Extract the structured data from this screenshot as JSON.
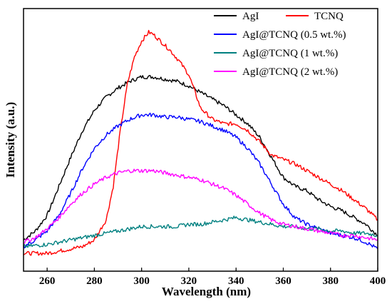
{
  "chart_data": {
    "type": "line",
    "title": "",
    "xlabel": "Wavelength (nm)",
    "ylabel": "Intensity (a.u.)",
    "xlim": [
      250,
      400
    ],
    "ylim": [
      0,
      1
    ],
    "y_ticks_shown": false,
    "grid": false,
    "legend_position": "top-right",
    "x_ticks": [
      "260",
      "280",
      "300",
      "320",
      "340",
      "360",
      "380",
      "400"
    ],
    "x_tick_values": [
      260,
      280,
      300,
      320,
      340,
      360,
      380,
      400
    ],
    "series": [
      {
        "name": "AgI",
        "color": "#000000",
        "x": [
          250,
          255,
          260,
          265,
          270,
          275,
          280,
          285,
          290,
          295,
          300,
          305,
          310,
          315,
          320,
          325,
          330,
          335,
          340,
          345,
          350,
          355,
          360,
          365,
          370,
          375,
          380,
          385,
          390,
          395,
          400
        ],
        "y": [
          0.06,
          0.1,
          0.17,
          0.3,
          0.43,
          0.55,
          0.64,
          0.7,
          0.74,
          0.77,
          0.79,
          0.79,
          0.78,
          0.77,
          0.75,
          0.72,
          0.69,
          0.66,
          0.62,
          0.58,
          0.52,
          0.43,
          0.34,
          0.3,
          0.28,
          0.24,
          0.21,
          0.19,
          0.16,
          0.13,
          0.08
        ]
      },
      {
        "name": "TCNQ",
        "color": "#ff0000",
        "x": [
          250,
          255,
          260,
          265,
          270,
          275,
          280,
          285,
          288,
          291,
          294,
          297,
          300,
          303,
          305,
          308,
          312,
          316,
          320,
          325,
          330,
          335,
          340,
          345,
          350,
          355,
          360,
          365,
          370,
          375,
          380,
          385,
          390,
          395,
          400
        ],
        "y": [
          0.0,
          0.0,
          0.0,
          0.01,
          0.02,
          0.03,
          0.06,
          0.15,
          0.3,
          0.55,
          0.76,
          0.88,
          0.95,
          0.99,
          0.98,
          0.95,
          0.91,
          0.86,
          0.8,
          0.65,
          0.6,
          0.58,
          0.58,
          0.55,
          0.5,
          0.44,
          0.42,
          0.4,
          0.37,
          0.34,
          0.31,
          0.28,
          0.24,
          0.2,
          0.15
        ]
      },
      {
        "name": "AgI@TCNQ (0.5 wt.%)",
        "color": "#0000ff",
        "x": [
          250,
          255,
          260,
          265,
          270,
          275,
          280,
          285,
          290,
          295,
          300,
          305,
          310,
          315,
          320,
          325,
          330,
          335,
          340,
          345,
          350,
          355,
          360,
          365,
          370,
          375,
          380,
          385,
          390,
          395,
          400
        ],
        "y": [
          0.03,
          0.06,
          0.1,
          0.17,
          0.27,
          0.38,
          0.47,
          0.53,
          0.57,
          0.6,
          0.62,
          0.62,
          0.61,
          0.61,
          0.6,
          0.59,
          0.57,
          0.55,
          0.52,
          0.47,
          0.4,
          0.31,
          0.22,
          0.16,
          0.13,
          0.11,
          0.09,
          0.08,
          0.07,
          0.05,
          0.02
        ]
      },
      {
        "name": "AgI@TCNQ (1 wt.%)",
        "color": "#008080",
        "x": [
          250,
          255,
          260,
          265,
          270,
          275,
          280,
          285,
          290,
          295,
          300,
          305,
          310,
          315,
          320,
          325,
          330,
          335,
          340,
          345,
          350,
          355,
          360,
          365,
          370,
          375,
          380,
          385,
          390,
          395,
          400
        ],
        "y": [
          0.03,
          0.035,
          0.04,
          0.05,
          0.06,
          0.07,
          0.08,
          0.09,
          0.1,
          0.11,
          0.12,
          0.12,
          0.12,
          0.12,
          0.13,
          0.13,
          0.14,
          0.15,
          0.16,
          0.15,
          0.14,
          0.13,
          0.12,
          0.12,
          0.11,
          0.11,
          0.1,
          0.1,
          0.09,
          0.09,
          0.08
        ]
      },
      {
        "name": "AgI@TCNQ (2 wt.%)",
        "color": "#ff00ff",
        "x": [
          250,
          255,
          260,
          265,
          270,
          275,
          280,
          285,
          290,
          295,
          300,
          305,
          310,
          315,
          320,
          325,
          330,
          335,
          340,
          345,
          350,
          355,
          360,
          365,
          370,
          375,
          380,
          385,
          390,
          395,
          400
        ],
        "y": [
          0.05,
          0.07,
          0.11,
          0.16,
          0.22,
          0.27,
          0.31,
          0.34,
          0.36,
          0.37,
          0.37,
          0.37,
          0.36,
          0.35,
          0.34,
          0.33,
          0.31,
          0.29,
          0.26,
          0.22,
          0.18,
          0.15,
          0.13,
          0.12,
          0.11,
          0.1,
          0.09,
          0.08,
          0.08,
          0.07,
          0.06
        ]
      }
    ]
  }
}
